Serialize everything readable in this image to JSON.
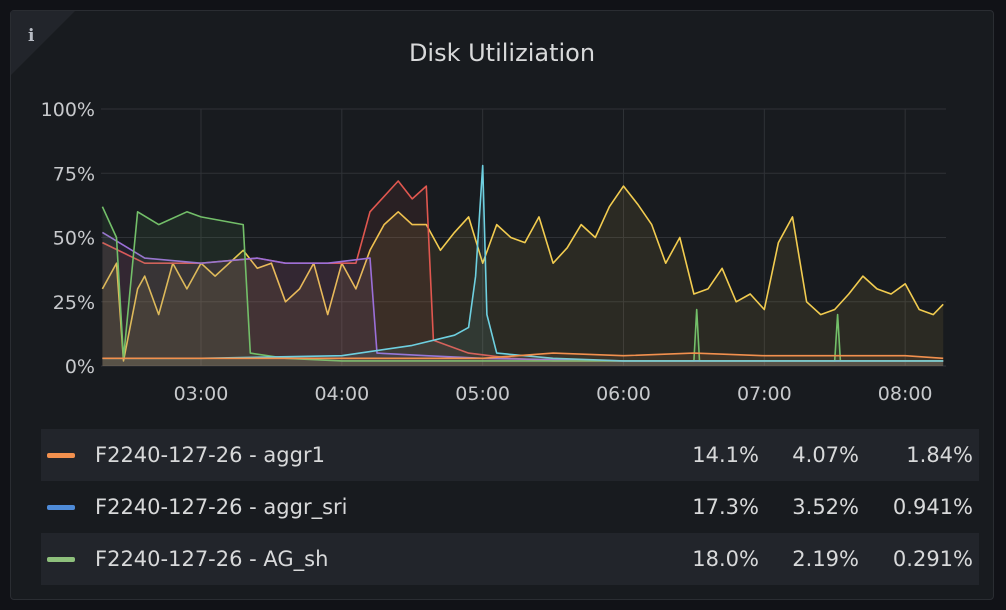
{
  "panel": {
    "title": "Disk Utiliziation",
    "info_icon": "i"
  },
  "legend": [
    {
      "name": "F2240-127-26 - aggr1",
      "color": "#f2904e",
      "v1": "14.1%",
      "v2": "4.07%",
      "v3": "1.84%"
    },
    {
      "name": "F2240-127-26 - aggr_sri",
      "color": "#4e8bd8",
      "v1": "17.3%",
      "v2": "3.52%",
      "v3": "0.941%"
    },
    {
      "name": "F2240-127-26 - AG_sh",
      "color": "#8ec07c",
      "v1": "18.0%",
      "v2": "2.19%",
      "v3": "0.291%"
    }
  ],
  "chart_data": {
    "type": "line",
    "title": "Disk Utiliziation",
    "y_ticks": [
      "0%",
      "25%",
      "50%",
      "75%",
      "100%"
    ],
    "x_ticks": [
      "03:00",
      "04:00",
      "05:00",
      "06:00",
      "07:00",
      "08:00"
    ],
    "ylim": [
      0,
      100
    ],
    "x_unit": "hours",
    "xlim": [
      2.29,
      8.29
    ],
    "grid": true,
    "series": [
      {
        "color": "#f2cc50",
        "values": [
          [
            2.3,
            30
          ],
          [
            2.4,
            40
          ],
          [
            2.45,
            2
          ],
          [
            2.55,
            30
          ],
          [
            2.6,
            35
          ],
          [
            2.7,
            20
          ],
          [
            2.8,
            40
          ],
          [
            2.9,
            30
          ],
          [
            3.0,
            40
          ],
          [
            3.1,
            35
          ],
          [
            3.2,
            40
          ],
          [
            3.3,
            45
          ],
          [
            3.4,
            38
          ],
          [
            3.5,
            40
          ],
          [
            3.6,
            25
          ],
          [
            3.7,
            30
          ],
          [
            3.8,
            40
          ],
          [
            3.9,
            20
          ],
          [
            4.0,
            40
          ],
          [
            4.1,
            30
          ],
          [
            4.2,
            45
          ],
          [
            4.3,
            55
          ],
          [
            4.4,
            60
          ],
          [
            4.5,
            55
          ],
          [
            4.6,
            55
          ],
          [
            4.7,
            45
          ],
          [
            4.8,
            52
          ],
          [
            4.9,
            58
          ],
          [
            5.0,
            40
          ],
          [
            5.1,
            55
          ],
          [
            5.2,
            50
          ],
          [
            5.3,
            48
          ],
          [
            5.4,
            58
          ],
          [
            5.5,
            40
          ],
          [
            5.6,
            46
          ],
          [
            5.7,
            55
          ],
          [
            5.8,
            50
          ],
          [
            5.9,
            62
          ],
          [
            6.0,
            70
          ],
          [
            6.1,
            63
          ],
          [
            6.2,
            55
          ],
          [
            6.3,
            40
          ],
          [
            6.4,
            50
          ],
          [
            6.5,
            28
          ],
          [
            6.6,
            30
          ],
          [
            6.7,
            38
          ],
          [
            6.8,
            25
          ],
          [
            6.9,
            28
          ],
          [
            7.0,
            22
          ],
          [
            7.1,
            48
          ],
          [
            7.2,
            58
          ],
          [
            7.3,
            25
          ],
          [
            7.4,
            20
          ],
          [
            7.5,
            22
          ],
          [
            7.6,
            28
          ],
          [
            7.7,
            35
          ],
          [
            7.8,
            30
          ],
          [
            7.9,
            28
          ],
          [
            8.0,
            32
          ],
          [
            8.1,
            22
          ],
          [
            8.2,
            20
          ],
          [
            8.27,
            24
          ]
        ]
      },
      {
        "color": "#e0574f",
        "values": [
          [
            2.3,
            48
          ],
          [
            2.6,
            40
          ],
          [
            3.0,
            40
          ],
          [
            3.4,
            42
          ],
          [
            3.6,
            40
          ],
          [
            3.9,
            40
          ],
          [
            4.1,
            40
          ],
          [
            4.2,
            60
          ],
          [
            4.4,
            72
          ],
          [
            4.5,
            65
          ],
          [
            4.6,
            70
          ],
          [
            4.65,
            10
          ],
          [
            4.9,
            5
          ],
          [
            5.2,
            3
          ],
          [
            5.5,
            2
          ],
          [
            6.0,
            2
          ],
          [
            7.0,
            2
          ],
          [
            8.27,
            2
          ]
        ]
      },
      {
        "color": "#9b6fd8",
        "values": [
          [
            2.3,
            52
          ],
          [
            2.6,
            42
          ],
          [
            3.0,
            40
          ],
          [
            3.4,
            42
          ],
          [
            3.6,
            40
          ],
          [
            3.9,
            40
          ],
          [
            4.2,
            42
          ],
          [
            4.25,
            5
          ],
          [
            4.6,
            4
          ],
          [
            5.0,
            3
          ],
          [
            6.0,
            2
          ],
          [
            8.27,
            2
          ]
        ]
      },
      {
        "color": "#73bf69",
        "values": [
          [
            2.3,
            62
          ],
          [
            2.4,
            50
          ],
          [
            2.45,
            3
          ],
          [
            2.55,
            60
          ],
          [
            2.7,
            55
          ],
          [
            2.9,
            60
          ],
          [
            3.0,
            58
          ],
          [
            3.3,
            55
          ],
          [
            3.35,
            5
          ],
          [
            3.6,
            3
          ],
          [
            4.0,
            2
          ],
          [
            5.0,
            2
          ],
          [
            6.5,
            2
          ],
          [
            6.52,
            22
          ],
          [
            6.54,
            2
          ],
          [
            7.5,
            2
          ],
          [
            7.52,
            20
          ],
          [
            7.54,
            2
          ],
          [
            8.27,
            2
          ]
        ]
      },
      {
        "color": "#6ed0e0",
        "values": [
          [
            2.3,
            3
          ],
          [
            3.0,
            3
          ],
          [
            4.0,
            4
          ],
          [
            4.5,
            8
          ],
          [
            4.8,
            12
          ],
          [
            4.9,
            15
          ],
          [
            4.95,
            35
          ],
          [
            5.0,
            78
          ],
          [
            5.03,
            20
          ],
          [
            5.1,
            5
          ],
          [
            5.5,
            3
          ],
          [
            6.0,
            2
          ],
          [
            8.27,
            2
          ]
        ]
      },
      {
        "color": "#f2904e",
        "values": [
          [
            2.3,
            3
          ],
          [
            3.0,
            3
          ],
          [
            4.0,
            3
          ],
          [
            5.0,
            3
          ],
          [
            5.5,
            5
          ],
          [
            6.0,
            4
          ],
          [
            6.5,
            5
          ],
          [
            7.0,
            4
          ],
          [
            7.5,
            4
          ],
          [
            8.0,
            4
          ],
          [
            8.27,
            3
          ]
        ]
      }
    ]
  }
}
